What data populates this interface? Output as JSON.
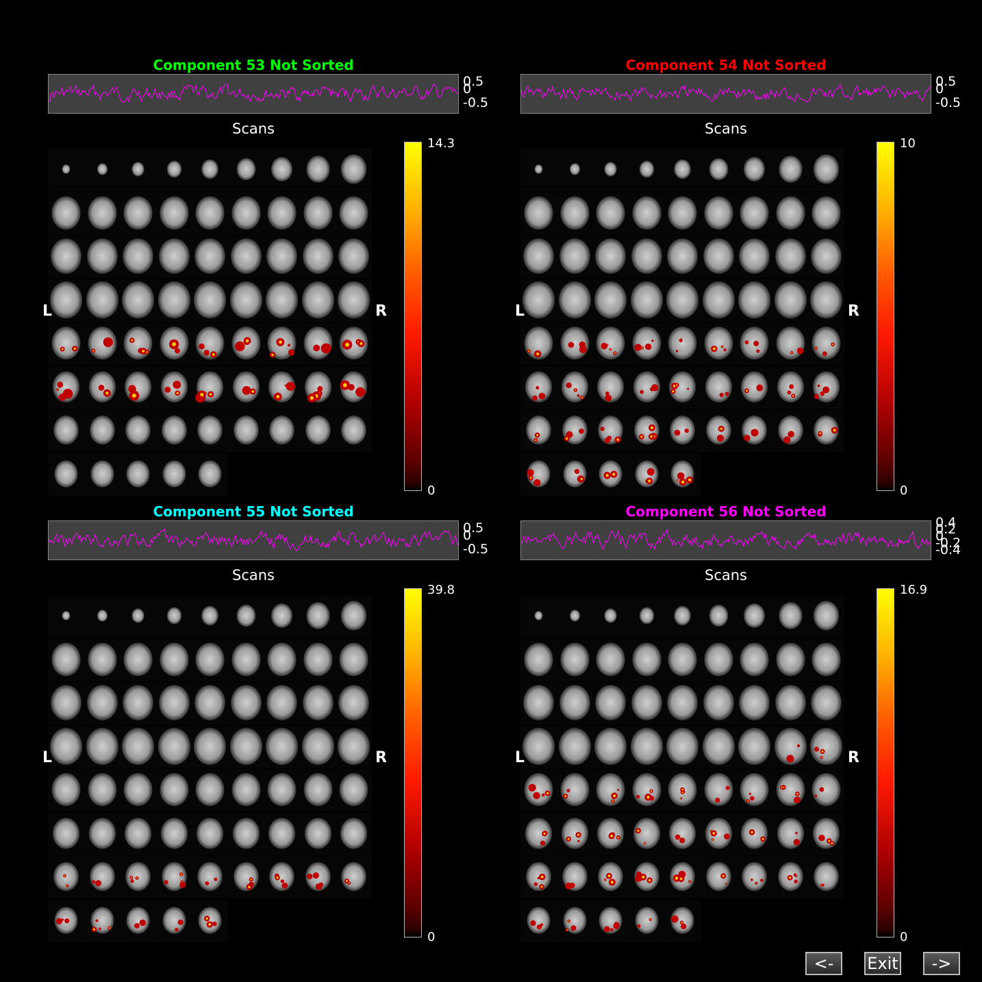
{
  "panels": [
    {
      "title": "Component 53 Not Sorted",
      "color": "#00ff00",
      "yticks": [
        "0.5",
        "0",
        "-0.5"
      ],
      "cmax": "14.3",
      "cmin": "0"
    },
    {
      "title": "Component 54 Not Sorted",
      "color": "#ff0000",
      "yticks": [
        "0.5",
        "0",
        "-0.5"
      ],
      "cmax": "10",
      "cmin": "0"
    },
    {
      "title": "Component 55 Not Sorted",
      "color": "#00ffff",
      "yticks": [
        "0.5",
        "0",
        "-0.5"
      ],
      "cmax": "39.8",
      "cmin": "0"
    },
    {
      "title": "Component 56 Not Sorted",
      "color": "#ff00ff",
      "yticks": [
        "0.4",
        "0.2",
        "0",
        "-0.2",
        "-0.4"
      ],
      "cmax": "16.9",
      "cmin": "0"
    }
  ],
  "labels": {
    "scans": "Scans",
    "left": "L",
    "right": "R"
  },
  "trace_color": "#ff00ff",
  "buttons": {
    "prev": "<-",
    "exit": "Exit",
    "next": "->"
  }
}
